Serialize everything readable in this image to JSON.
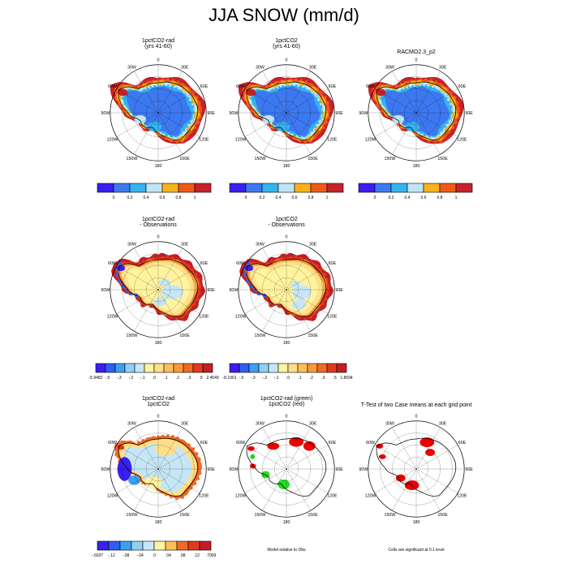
{
  "title": "JJA SNOW (mm/d)",
  "colors": {
    "abs": [
      "#3a1ef0",
      "#3c78f0",
      "#35b4ee",
      "#bfe6f5",
      "#f9b21a",
      "#f05a16",
      "#c8222a"
    ],
    "diff": [
      "#3b1ff0",
      "#2e5ff0",
      "#3d9ff0",
      "#8fd0f5",
      "#c6e6f5",
      "#fff3a0",
      "#ffe08a",
      "#fcbf5a",
      "#f99a3a",
      "#f06a28",
      "#e23a1e",
      "#c41e25"
    ],
    "sig_red": "#ee0000",
    "sig_green": "#22dd22",
    "ice_blue": "#4e6de6"
  },
  "degree_labels": [
    "0",
    "30E",
    "60E",
    "90E",
    "120E",
    "150E",
    "180",
    "150W",
    "120W",
    "90W",
    "60W",
    "30W"
  ],
  "chart_data": [
    {
      "type": "heatmap",
      "title": "1pctCO2-rad\n(yrs 41-60)",
      "field": "abs",
      "colorbar": {
        "ticks": [
          "0",
          "0.2",
          "0.4",
          "0.6",
          "0.8",
          "1"
        ]
      }
    },
    {
      "type": "heatmap",
      "title": "1pctCO2\n(yrs 41-60)",
      "field": "abs",
      "colorbar": {
        "ticks": [
          "0",
          "0.2",
          "0.4",
          "0.6",
          "0.8",
          "1"
        ]
      }
    },
    {
      "type": "heatmap",
      "title": "RACMO2.3_p2",
      "field": "abs",
      "colorbar": {
        "ticks": [
          "0",
          "0.2",
          "0.4",
          "0.6",
          "0.8",
          "1"
        ]
      }
    },
    {
      "type": "heatmap",
      "title": "1pctCO2-rad\n- Observations",
      "field": "diff",
      "colorbar": {
        "ticks": [
          "-5.9482",
          "-.5",
          "-.3",
          "-.2",
          "-.1",
          ".0",
          ".1",
          ".2",
          ".3",
          ".5",
          "2.4549"
        ]
      }
    },
    {
      "type": "heatmap",
      "title": "1pctCO2\n- Observations",
      "field": "diff",
      "colorbar": {
        "ticks": [
          "-8.1901",
          "-.5",
          "-.3",
          "-.2",
          "-.1",
          ".0",
          ".1",
          ".2",
          ".3",
          ".5",
          "1.8694"
        ]
      }
    },
    {
      "type": "heatmap",
      "title": "1pctCO2-rad\n1pctCO2",
      "field": "diff2",
      "colorbar": {
        "ticks": [
          "-.6037",
          "-.12",
          "-.08",
          "-.04",
          ".0",
          ".04",
          ".08",
          ".12",
          ".7009"
        ]
      }
    },
    {
      "type": "heatmap",
      "title": "1pctCO2-rad (green)\n1pctCO2 (red)",
      "field": "compare",
      "caption": "Model relative to Obs"
    },
    {
      "type": "heatmap",
      "title": "T-Test of two Case means at each grid point",
      "field": "ttest",
      "caption": "Cells are significant at 0.1 level"
    }
  ]
}
